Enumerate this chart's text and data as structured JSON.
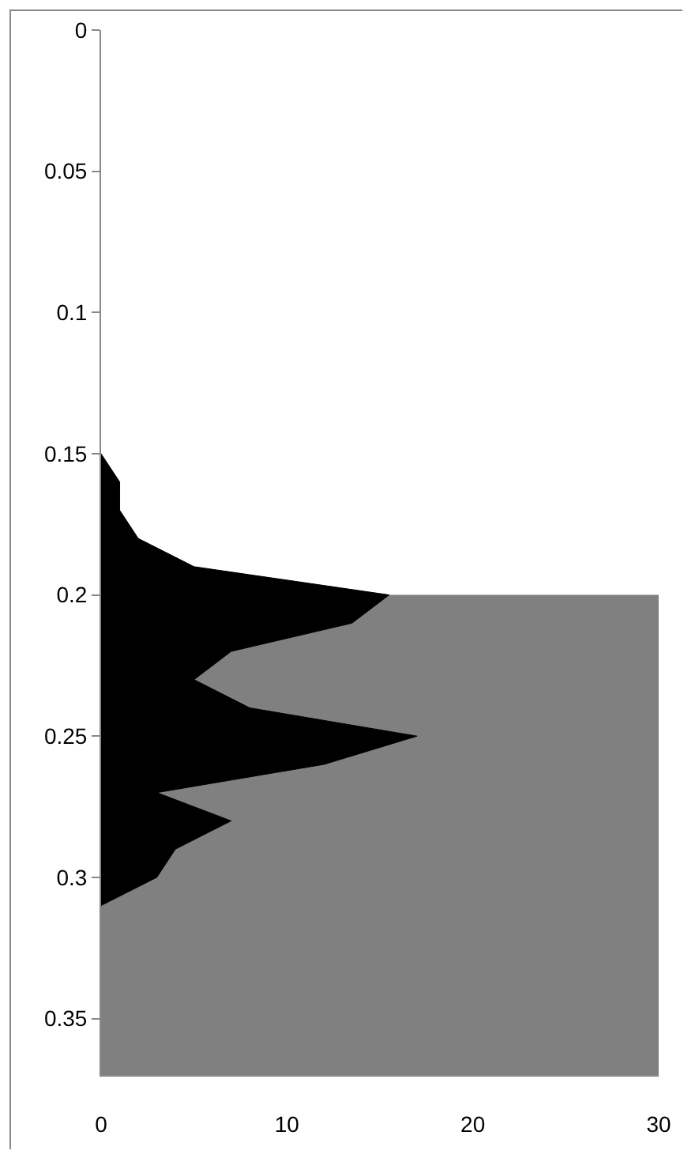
{
  "chart_data": {
    "type": "area",
    "orientation": "horizontal",
    "x": [
      0.15,
      0.16,
      0.17,
      0.18,
      0.19,
      0.2,
      0.21,
      0.22,
      0.23,
      0.24,
      0.25,
      0.26,
      0.27,
      0.28,
      0.29,
      0.3,
      0.31
    ],
    "series": [
      {
        "color": "#000000",
        "values": [
          0,
          1,
          1,
          2,
          5,
          15.5,
          13.5,
          7,
          5,
          8,
          17,
          12,
          3,
          7,
          4,
          3,
          0
        ]
      }
    ],
    "xlim": [
      0,
      30
    ],
    "xticks": [
      0,
      10,
      20,
      30
    ],
    "ylim": [
      0.37,
      0
    ],
    "yticks": [
      {
        "value": 0,
        "label": "0"
      },
      0.05,
      0.1,
      0.15,
      0.2,
      0.25,
      0.3,
      0.35
    ],
    "bands": [
      {
        "axis": "y",
        "from": 0.2,
        "to": 0.37,
        "color": "#808080"
      }
    ],
    "grid": false
  }
}
